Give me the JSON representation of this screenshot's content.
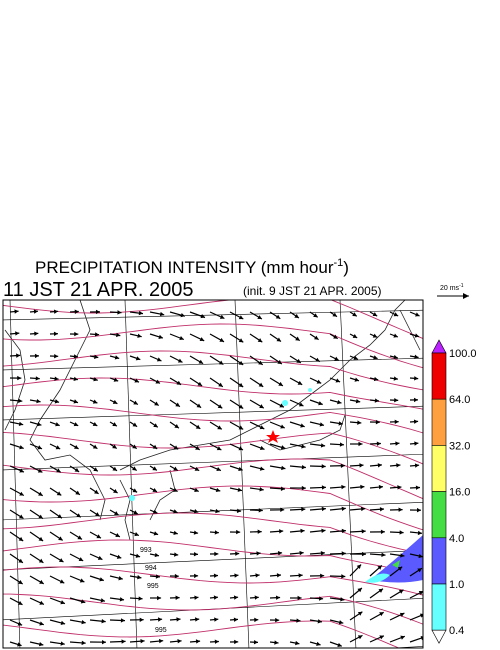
{
  "header": {
    "title": {
      "main": "PRECIPITATION INTENSITY (mm hour",
      "sup": "-1",
      "end": ")"
    },
    "valid_time": "11 JST 21 APR. 2005",
    "init_time": "(init. 9 JST 21 APR. 2005)"
  },
  "wind_scale": {
    "label": "20 ms",
    "sup": "-1"
  },
  "colorbar": {
    "labels": [
      "100.0",
      "64.0",
      "32.0",
      "16.0",
      "4.0",
      "1.0",
      "0.4"
    ]
  },
  "isobar_labels": [
    "993",
    "994",
    "995",
    "995"
  ]
}
